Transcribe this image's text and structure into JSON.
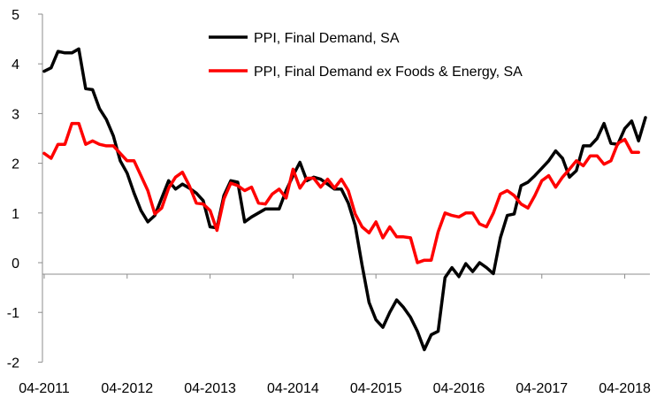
{
  "chart_data": {
    "type": "line",
    "title": "",
    "xlabel": "",
    "ylabel": "",
    "ylim": [
      -2,
      5
    ],
    "yticks": [
      -2,
      -1,
      0,
      1,
      2,
      3,
      4,
      5
    ],
    "xticks": [
      {
        "label": "04-2011",
        "index": 0
      },
      {
        "label": "04-2012",
        "index": 12
      },
      {
        "label": "04-2013",
        "index": 24
      },
      {
        "label": "04-2014",
        "index": 36
      },
      {
        "label": "04-2015",
        "index": 48
      },
      {
        "label": "04-2016",
        "index": 60
      },
      {
        "label": "04-2017",
        "index": 72
      },
      {
        "label": "04-2018",
        "index": 84
      }
    ],
    "x_start": "04-2011",
    "x_step": "1 month",
    "legend_position": "top-center",
    "series": [
      {
        "name": "PPI, Final Demand, SA",
        "color": "#000000",
        "values": [
          3.85,
          3.92,
          4.25,
          4.22,
          4.22,
          4.3,
          3.5,
          3.48,
          3.1,
          2.88,
          2.55,
          2.05,
          1.8,
          1.4,
          1.05,
          0.82,
          0.95,
          1.3,
          1.65,
          1.48,
          1.58,
          1.5,
          1.4,
          1.25,
          0.72,
          0.7,
          1.35,
          1.65,
          1.62,
          0.82,
          0.92,
          1.0,
          1.08,
          1.08,
          1.08,
          1.45,
          1.75,
          2.02,
          1.65,
          1.72,
          1.68,
          1.58,
          1.48,
          1.48,
          1.2,
          0.75,
          -0.05,
          -0.8,
          -1.15,
          -1.3,
          -1.0,
          -0.75,
          -0.9,
          -1.1,
          -1.38,
          -1.75,
          -1.45,
          -1.38,
          -0.3,
          -0.1,
          -0.28,
          -0.02,
          -0.18,
          0.0,
          -0.1,
          -0.22,
          0.5,
          0.95,
          0.98,
          1.55,
          1.62,
          1.75,
          1.9,
          2.05,
          2.25,
          2.1,
          1.72,
          1.85,
          2.35,
          2.35,
          2.5,
          2.8,
          2.4,
          2.38,
          2.7,
          2.85,
          2.45,
          2.92
        ]
      },
      {
        "name": "PPI, Final Demand ex Foods & Energy, SA",
        "color": "#ff0000",
        "values": [
          2.2,
          2.1,
          2.38,
          2.38,
          2.8,
          2.8,
          2.38,
          2.45,
          2.38,
          2.35,
          2.35,
          2.2,
          2.05,
          2.05,
          1.75,
          1.45,
          0.98,
          1.1,
          1.5,
          1.72,
          1.82,
          1.55,
          1.2,
          1.18,
          1.05,
          0.65,
          1.28,
          1.6,
          1.55,
          1.45,
          1.52,
          1.2,
          1.18,
          1.38,
          1.48,
          1.3,
          1.88,
          1.5,
          1.7,
          1.7,
          1.52,
          1.68,
          1.5,
          1.68,
          1.45,
          0.98,
          0.72,
          0.6,
          0.82,
          0.5,
          0.72,
          0.52,
          0.52,
          0.5,
          0.0,
          0.05,
          0.05,
          0.62,
          1.0,
          0.95,
          0.92,
          1.0,
          1.0,
          0.78,
          0.72,
          1.0,
          1.38,
          1.45,
          1.35,
          1.18,
          1.1,
          1.35,
          1.65,
          1.75,
          1.52,
          1.72,
          1.88,
          2.05,
          1.95,
          2.15,
          2.15,
          1.98,
          2.05,
          2.4,
          2.48,
          2.22,
          2.22
        ]
      }
    ]
  }
}
